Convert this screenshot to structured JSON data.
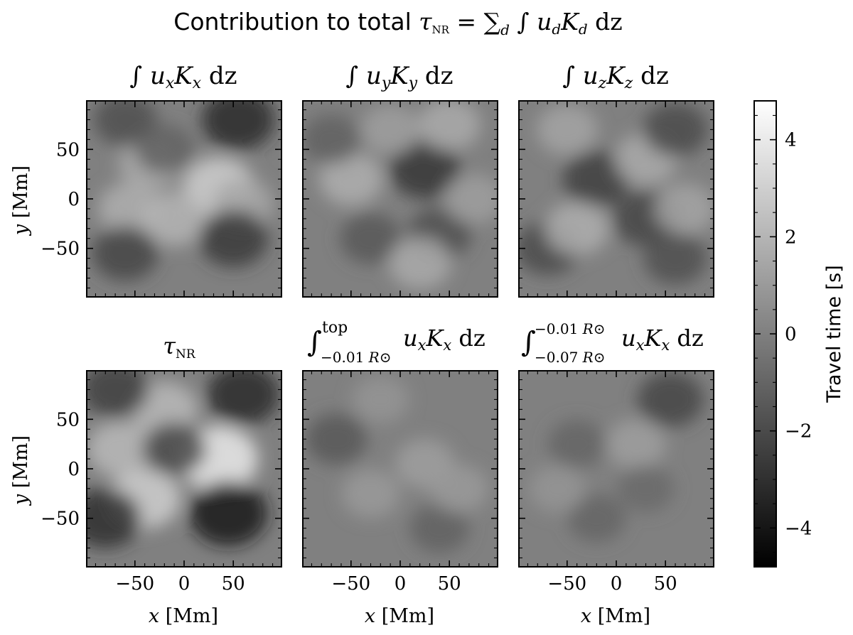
{
  "figure": {
    "title": "Contribution to total τNR = ∑d ∫ ud Kd dz"
  },
  "colorbar": {
    "label": "Travel time [s]",
    "range": [
      -4.8,
      4.8
    ],
    "ticks": [
      4,
      2,
      0,
      -2,
      -4
    ],
    "tick_labels": [
      "4",
      "2",
      "0",
      "−2",
      "−4"
    ],
    "colormap": "gray"
  },
  "axes_common": {
    "xlabel": "x [Mm]",
    "ylabel": "y [Mm]",
    "xlim": [
      -99,
      99
    ],
    "ylim": [
      -99,
      99
    ],
    "ticks": [
      -50,
      0,
      50
    ],
    "tick_labels": [
      "−50",
      "0",
      "50"
    ]
  },
  "chart_data": [
    {
      "type": "heatmap",
      "title": "∫ ux Kx dz",
      "title_parts": {
        "sub_var": "x",
        "sub_kernel": "x"
      },
      "xlabel": "",
      "ylabel": "y [Mm]",
      "xlim": [
        -99,
        99
      ],
      "ylim": [
        -99,
        99
      ],
      "features": [
        {
          "x": 35,
          "y": 12,
          "v": 3.0
        },
        {
          "x": -35,
          "y": 35,
          "v": 1.6
        },
        {
          "x": -55,
          "y": -10,
          "v": 1.8
        },
        {
          "x": -10,
          "y": -20,
          "v": 2.0
        },
        {
          "x": 60,
          "y": -5,
          "v": 1.5
        },
        {
          "x": 55,
          "y": 80,
          "v": -3.2
        },
        {
          "x": -60,
          "y": 80,
          "v": -1.8
        },
        {
          "x": -60,
          "y": -55,
          "v": -2.2
        },
        {
          "x": 50,
          "y": -40,
          "v": -2.6
        },
        {
          "x": -20,
          "y": 50,
          "v": -1.2
        }
      ]
    },
    {
      "type": "heatmap",
      "title": "∫ uy Ky dz",
      "title_parts": {
        "sub_var": "y",
        "sub_kernel": "y"
      },
      "xlabel": "",
      "ylabel": "",
      "xlim": [
        -99,
        99
      ],
      "ylim": [
        -99,
        99
      ],
      "features": [
        {
          "x": 25,
          "y": 30,
          "v": -2.8
        },
        {
          "x": -30,
          "y": -40,
          "v": -1.5
        },
        {
          "x": 40,
          "y": -35,
          "v": -1.8
        },
        {
          "x": -50,
          "y": 20,
          "v": 1.8
        },
        {
          "x": 50,
          "y": 75,
          "v": 1.6
        },
        {
          "x": 20,
          "y": -65,
          "v": 1.6
        },
        {
          "x": -70,
          "y": 60,
          "v": -1.2
        },
        {
          "x": 75,
          "y": 0,
          "v": 1.2
        },
        {
          "x": -10,
          "y": 70,
          "v": 1.2
        }
      ]
    },
    {
      "type": "heatmap",
      "title": "∫ uz Kz dz",
      "title_parts": {
        "sub_var": "z",
        "sub_kernel": "z"
      },
      "xlabel": "",
      "ylabel": "",
      "xlim": [
        -99,
        99
      ],
      "ylim": [
        -99,
        99
      ],
      "features": [
        {
          "x": -20,
          "y": 20,
          "v": -2.4
        },
        {
          "x": 30,
          "y": -20,
          "v": -2.2
        },
        {
          "x": 60,
          "y": -60,
          "v": -1.8
        },
        {
          "x": -70,
          "y": -50,
          "v": -2.0
        },
        {
          "x": -40,
          "y": -30,
          "v": 1.8
        },
        {
          "x": 30,
          "y": 40,
          "v": 1.6
        },
        {
          "x": -50,
          "y": 70,
          "v": 1.4
        },
        {
          "x": 60,
          "y": 70,
          "v": -2.0
        },
        {
          "x": 70,
          "y": -10,
          "v": 1.4
        }
      ]
    },
    {
      "type": "heatmap",
      "title": "τNR",
      "title_parts": {
        "tau": "τ",
        "sub": "NR"
      },
      "xlabel": "x [Mm]",
      "ylabel": "y [Mm]",
      "xlim": [
        -99,
        99
      ],
      "ylim": [
        -99,
        99
      ],
      "features": [
        {
          "x": 35,
          "y": 10,
          "v": 4.0
        },
        {
          "x": -40,
          "y": -30,
          "v": 3.0
        },
        {
          "x": -20,
          "y": 60,
          "v": 2.2
        },
        {
          "x": -65,
          "y": 20,
          "v": 2.2
        },
        {
          "x": -10,
          "y": 20,
          "v": -2.0
        },
        {
          "x": 60,
          "y": 75,
          "v": -3.2
        },
        {
          "x": -70,
          "y": 80,
          "v": -2.4
        },
        {
          "x": -80,
          "y": -50,
          "v": -3.0
        },
        {
          "x": 45,
          "y": -45,
          "v": -4.0
        }
      ]
    },
    {
      "type": "heatmap",
      "title": "∫ from −0.01 R⊙ to top of ux Kx dz",
      "title_parts": {
        "upper": "top",
        "lower": "−0.01 R⊙"
      },
      "xlabel": "x [Mm]",
      "ylabel": "",
      "xlim": [
        -99,
        99
      ],
      "ylim": [
        -99,
        99
      ],
      "features": [
        {
          "x": -65,
          "y": 30,
          "v": -1.5
        },
        {
          "x": 40,
          "y": -60,
          "v": -1.2
        },
        {
          "x": 25,
          "y": 5,
          "v": 1.2
        },
        {
          "x": -30,
          "y": -25,
          "v": 1.0
        },
        {
          "x": 60,
          "y": -20,
          "v": 1.0
        },
        {
          "x": -20,
          "y": 70,
          "v": 0.8
        }
      ]
    },
    {
      "type": "heatmap",
      "title": "∫ from −0.07 R⊙ to −0.01 R⊙ of ux Kx dz",
      "title_parts": {
        "upper": "−0.01 R⊙",
        "lower": "−0.07 R⊙"
      },
      "xlabel": "x [Mm]",
      "ylabel": "",
      "xlim": [
        -99,
        99
      ],
      "ylim": [
        -99,
        99
      ],
      "features": [
        {
          "x": 55,
          "y": 70,
          "v": -2.2
        },
        {
          "x": 20,
          "y": 25,
          "v": 1.2
        },
        {
          "x": -40,
          "y": 25,
          "v": -1.0
        },
        {
          "x": -20,
          "y": -50,
          "v": -1.0
        },
        {
          "x": 30,
          "y": -20,
          "v": -0.8
        },
        {
          "x": -60,
          "y": -20,
          "v": 0.8
        }
      ]
    }
  ]
}
